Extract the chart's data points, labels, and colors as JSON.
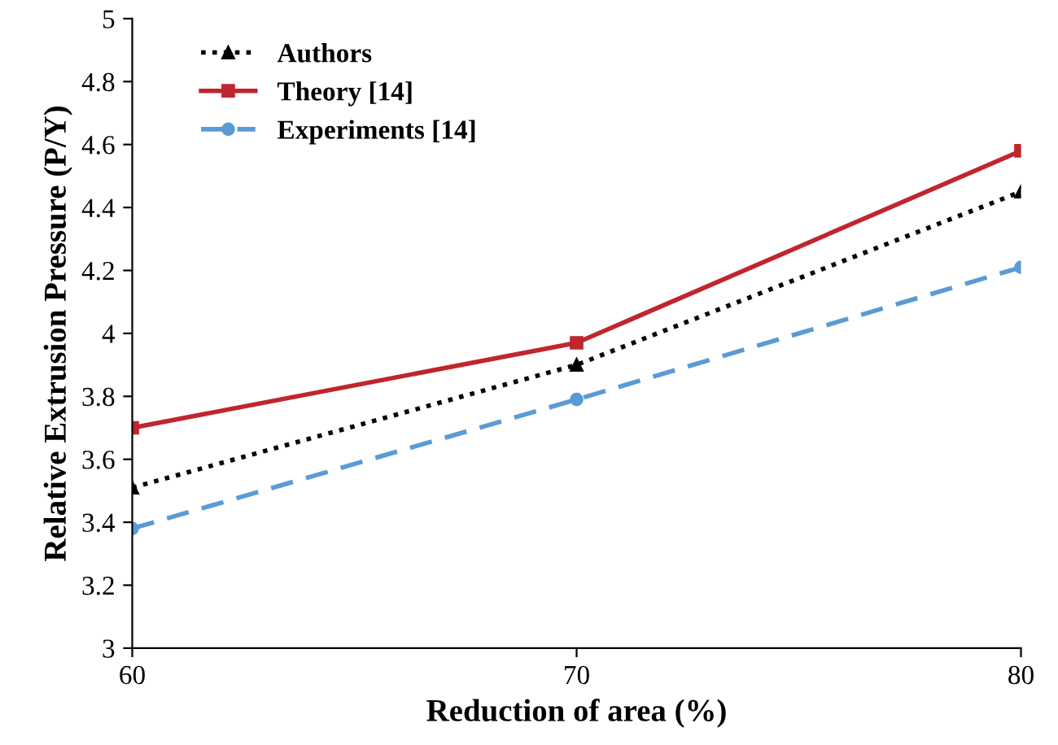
{
  "chart_data": {
    "type": "line",
    "xlabel": "Reduction of area (%)",
    "ylabel": "Relative Extrusion Pressure (P/Y)",
    "x": [
      60,
      70,
      80
    ],
    "series": [
      {
        "name": "Authors",
        "color": "#000000",
        "values": [
          3.51,
          3.9,
          4.45
        ],
        "marker": "triangle",
        "line_style": "dotted"
      },
      {
        "name": "Theory [14]",
        "color": "#c0262d",
        "values": [
          3.7,
          3.97,
          4.58
        ],
        "marker": "square",
        "line_style": "solid"
      },
      {
        "name": "Experiments [14]",
        "color": "#5b9bd5",
        "values": [
          3.38,
          3.79,
          4.21
        ],
        "marker": "circle",
        "line_style": "dashed"
      }
    ],
    "xlim": [
      60,
      80
    ],
    "xticks": [
      60,
      70,
      80
    ],
    "ylim": [
      3,
      5
    ],
    "yticks": [
      3,
      3.2,
      3.4,
      3.6,
      3.8,
      4,
      4.2,
      4.4,
      4.6,
      4.8,
      5
    ],
    "grid": false,
    "legend": "top left"
  }
}
